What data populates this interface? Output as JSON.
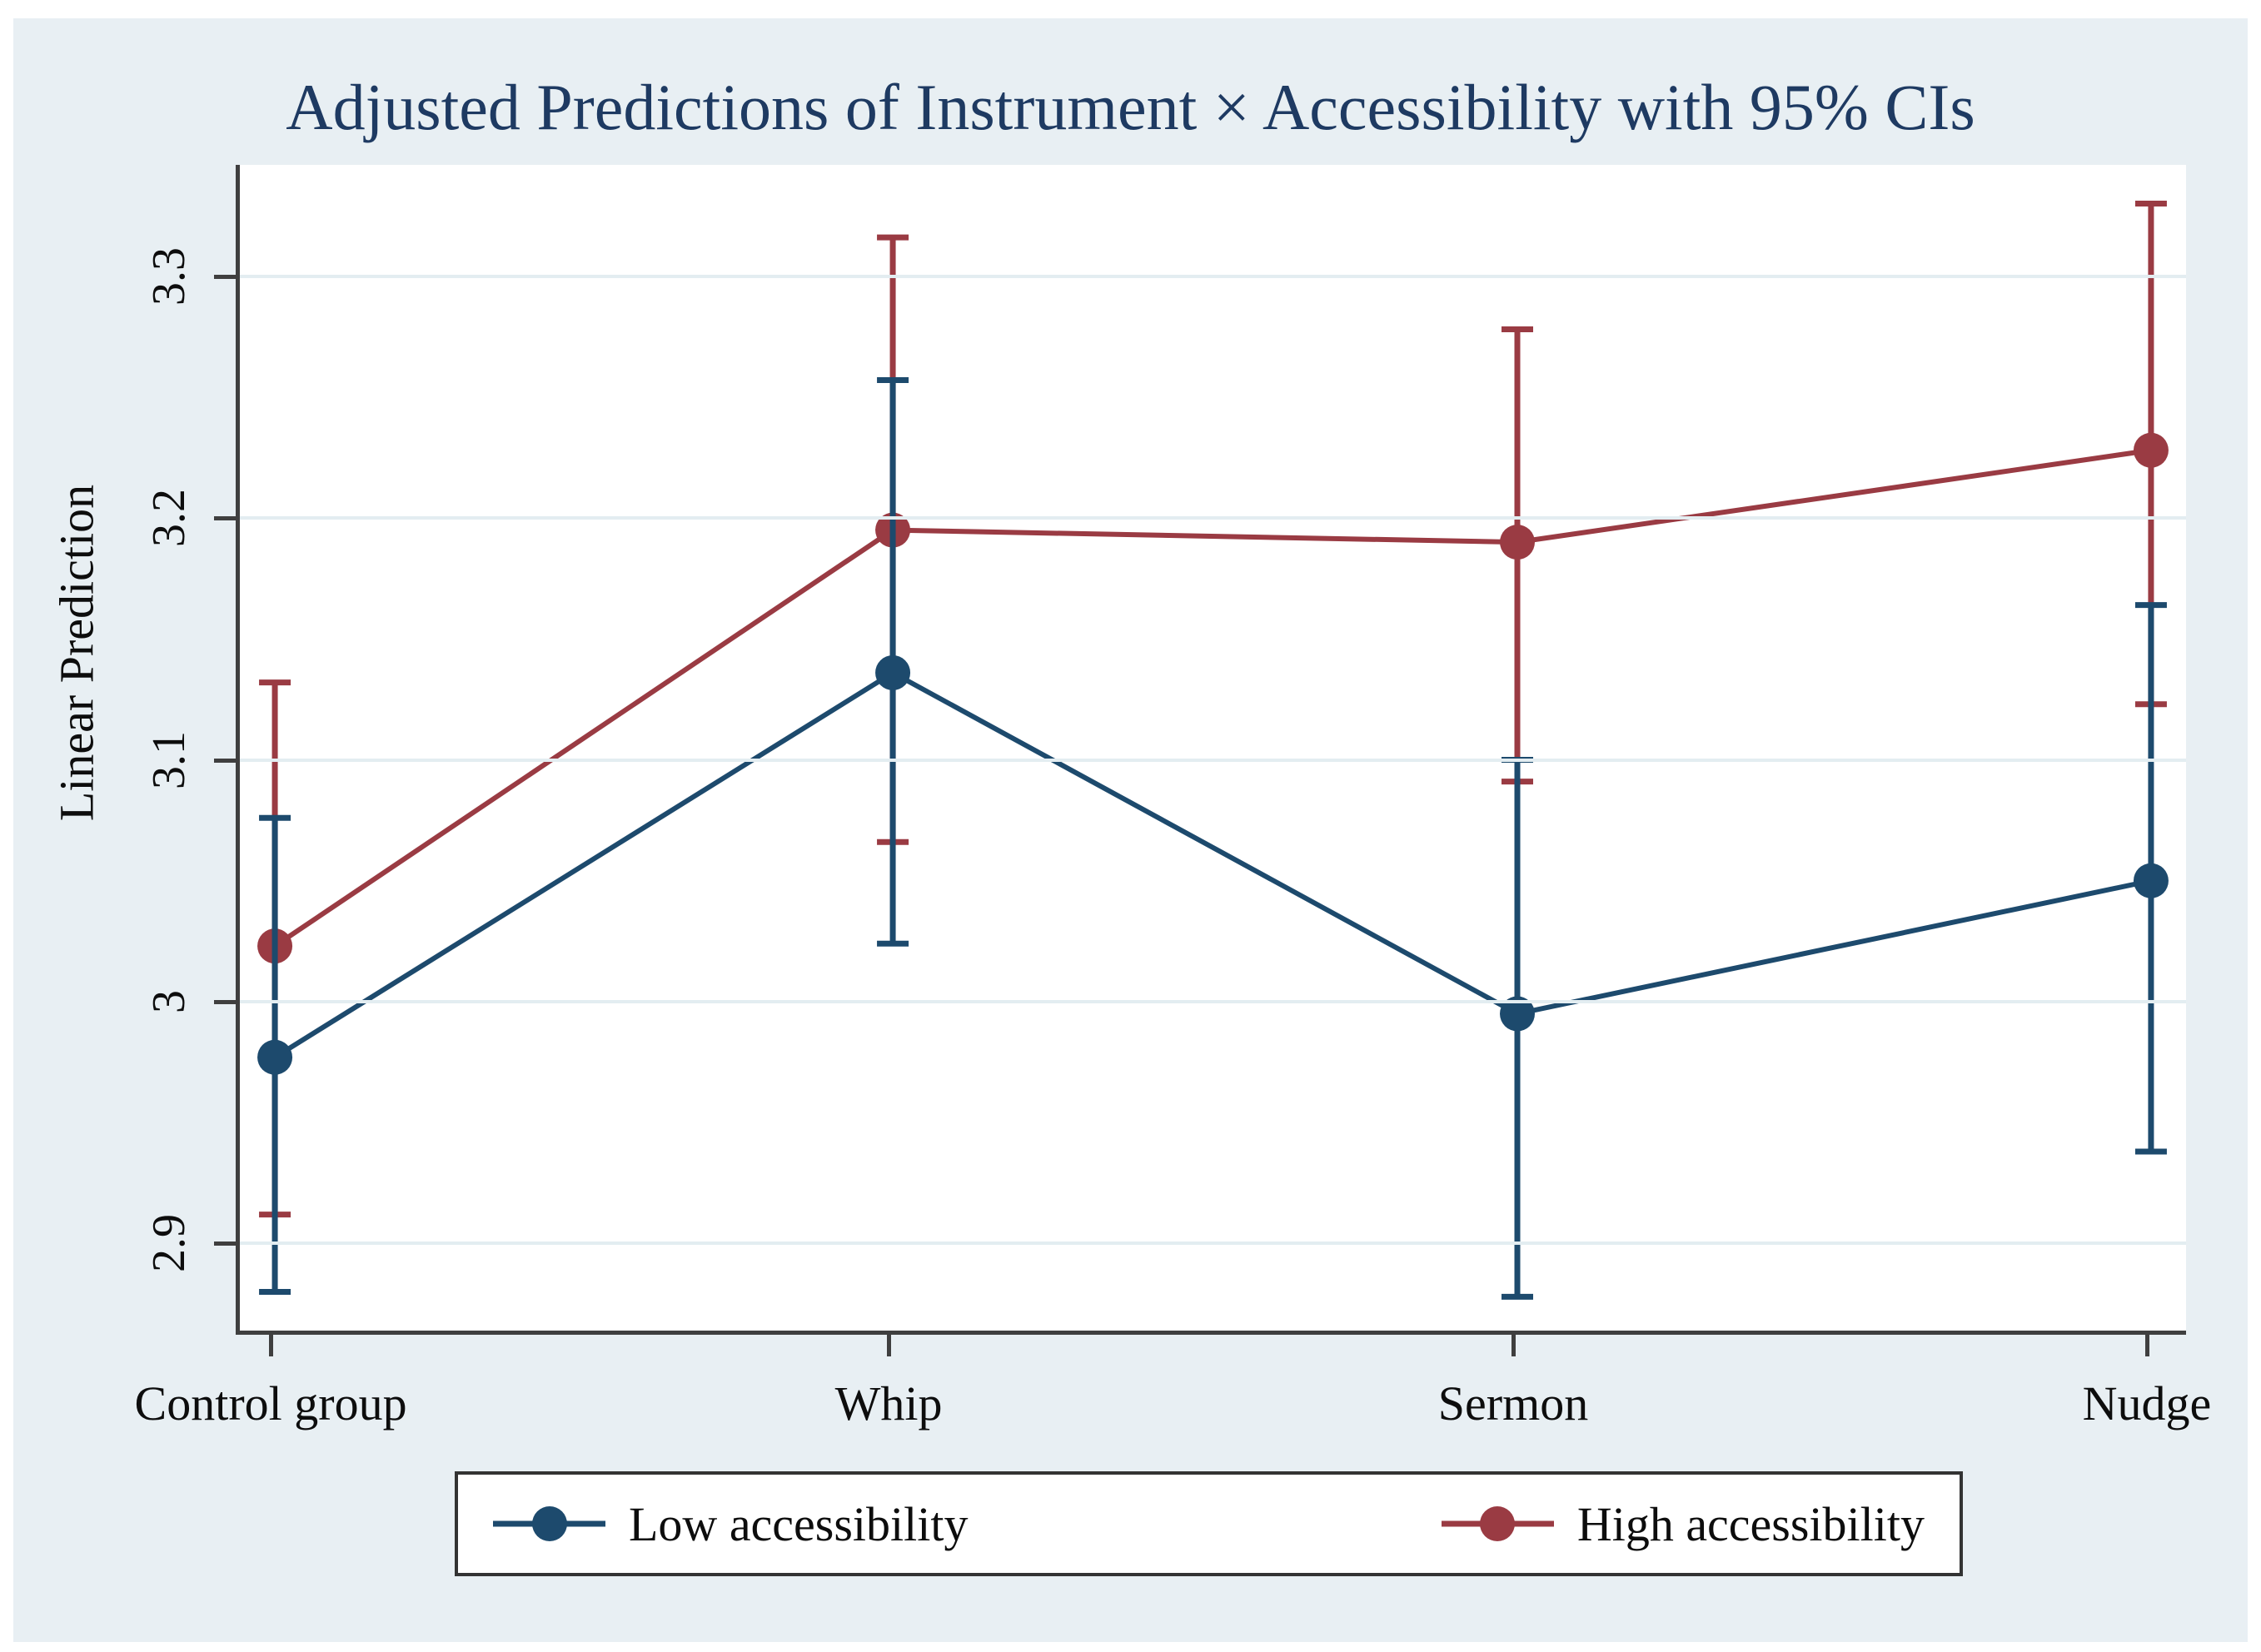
{
  "title": "Adjusted Predictions of Instrument × Accessibility with 95% CIs",
  "y_axis": {
    "label": "Linear Prediction",
    "tick_labels": [
      "2.9",
      "3",
      "3.1",
      "3.2",
      "3.3"
    ],
    "tick_values": [
      2.9,
      3.0,
      3.1,
      3.2,
      3.3
    ]
  },
  "x_axis": {
    "categories": [
      "Control group",
      "Whip",
      "Sermon",
      "Nudge"
    ]
  },
  "legend": {
    "items": [
      {
        "label": "Low accessibility",
        "color": "#1d4a6d"
      },
      {
        "label": "High accessibility",
        "color": "#9a3b43"
      }
    ]
  },
  "colors": {
    "canvas_bg": "#e8eff3",
    "plot_bg": "#ffffff",
    "gridline": "#e3edf1",
    "axis": "#3f3f3f",
    "title_text": "#1e3a62",
    "label_text": "#0d0d0d"
  },
  "chart_data": {
    "type": "line",
    "title": "Adjusted Predictions of Instrument × Accessibility with 95% CIs",
    "xlabel": "",
    "ylabel": "Linear Prediction",
    "categories": [
      "Control group",
      "Whip",
      "Sermon",
      "Nudge"
    ],
    "series": [
      {
        "name": "Low accessibility",
        "color": "#1d4a6d",
        "values": [
          2.977,
          3.136,
          2.995,
          3.05
        ],
        "ci_low": [
          2.88,
          3.024,
          2.878,
          2.938
        ],
        "ci_high": [
          3.076,
          3.257,
          3.1,
          3.164
        ]
      },
      {
        "name": "High accessibility",
        "color": "#9a3b43",
        "values": [
          3.023,
          3.195,
          3.19,
          3.228
        ],
        "ci_low": [
          2.912,
          3.066,
          3.091,
          3.123
        ],
        "ci_high": [
          3.132,
          3.316,
          3.278,
          3.33
        ]
      }
    ],
    "ylim": [
      2.864,
      3.346
    ],
    "gridlines": [
      2.9,
      3.0,
      3.1,
      3.2,
      3.3
    ],
    "grid": true,
    "legend_position": "bottom",
    "ci_level": "95%",
    "error_bars": true
  }
}
